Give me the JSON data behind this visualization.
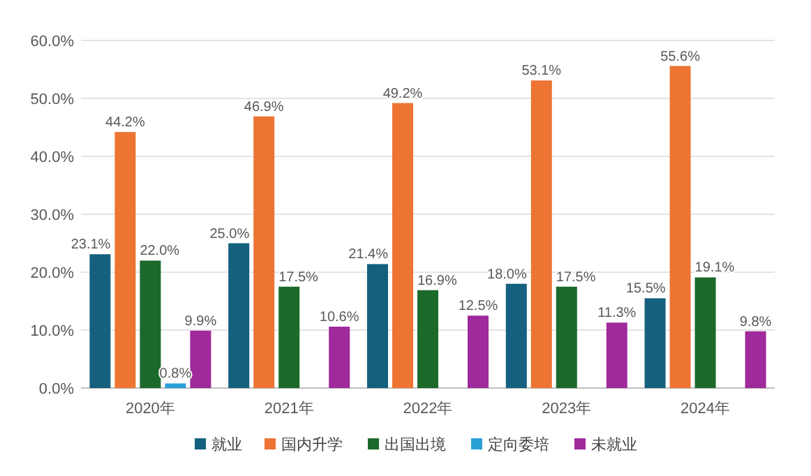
{
  "chart_data": {
    "type": "bar",
    "categories": [
      "2020年",
      "2021年",
      "2022年",
      "2023年",
      "2024年"
    ],
    "series": [
      {
        "name": "就业",
        "color": "#14607e",
        "values": [
          23.1,
          25.0,
          21.4,
          18.0,
          15.5
        ],
        "value_labels": [
          "23.1%",
          "25.0%",
          "21.4%",
          "18.0%",
          "15.5%"
        ]
      },
      {
        "name": "国内升学",
        "color": "#ed7433",
        "values": [
          44.2,
          46.9,
          49.2,
          53.1,
          55.6
        ],
        "value_labels": [
          "44.2%",
          "46.9%",
          "49.2%",
          "53.1%",
          "55.6%"
        ]
      },
      {
        "name": "出国出境",
        "color": "#1b6a2a",
        "values": [
          22.0,
          17.5,
          16.9,
          17.5,
          19.1
        ],
        "value_labels": [
          "22.0%",
          "17.5%",
          "16.9%",
          "17.5%",
          "19.1%"
        ]
      },
      {
        "name": "定向委培",
        "color": "#2aa0d8",
        "values": [
          0.8,
          null,
          null,
          null,
          null
        ],
        "value_labels": [
          "0.8%",
          null,
          null,
          null,
          null
        ]
      },
      {
        "name": "未就业",
        "color": "#a0299b",
        "values": [
          9.9,
          10.6,
          12.5,
          11.3,
          9.8
        ],
        "value_labels": [
          "9.9%",
          "10.6%",
          "12.5%",
          "11.3%",
          "9.8%"
        ]
      }
    ],
    "ylim": [
      0,
      60
    ],
    "yticks": [
      {
        "value": 0,
        "label": "0.0%"
      },
      {
        "value": 10,
        "label": "10.0%"
      },
      {
        "value": 20,
        "label": "20.0%"
      },
      {
        "value": 30,
        "label": "30.0%"
      },
      {
        "value": 40,
        "label": "40.0%"
      },
      {
        "value": 50,
        "label": "50.0%"
      },
      {
        "value": 60,
        "label": "60.0%"
      }
    ],
    "grid": "y",
    "legend": "bottom"
  }
}
